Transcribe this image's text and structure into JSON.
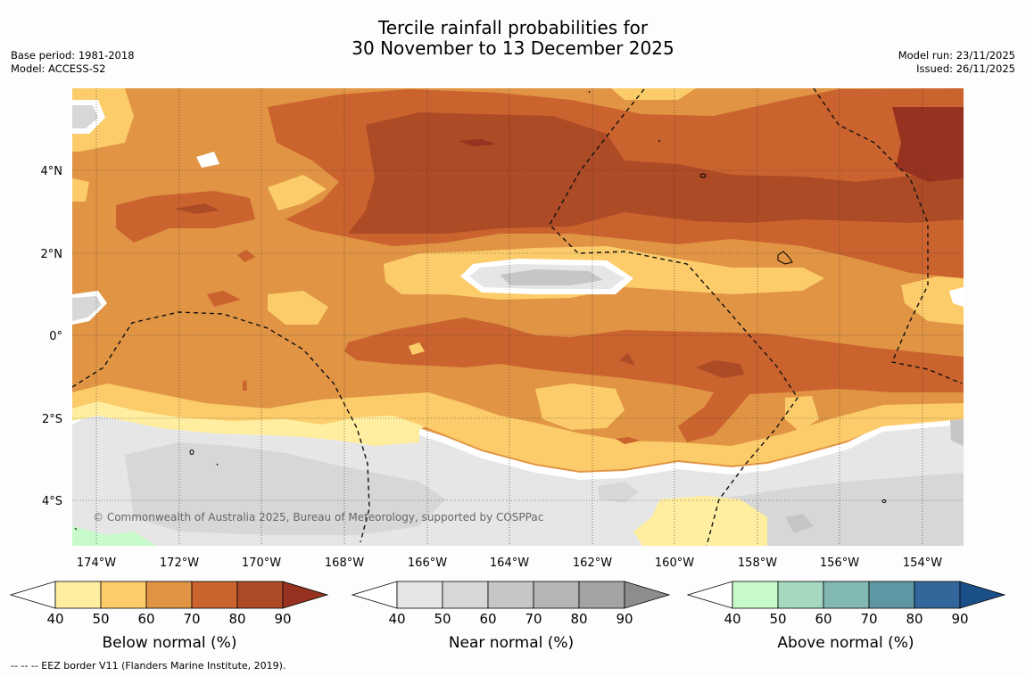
{
  "header": {
    "title_line1": "Tercile rainfall probabilities for",
    "title_line2": "30 November to 13 December 2025",
    "base_period": "Base period: 1981-2018",
    "model": "Model: ACCESS-S2",
    "model_run": "Model run: 23/11/2025",
    "issued": "Issued: 26/11/2025"
  },
  "map": {
    "lat_labels": [
      "4°N",
      "2°N",
      "0°",
      "2°S",
      "4°S"
    ],
    "lon_labels": [
      "174°W",
      "172°W",
      "170°W",
      "168°W",
      "166°W",
      "164°W",
      "162°W",
      "160°W",
      "158°W",
      "156°W",
      "154°W"
    ],
    "copyright": "© Commonwealth of Australia 2025, Bureau of Meteorology, supported by COSPPac",
    "colors": {
      "below": [
        "#ffeea0",
        "#fdcc6a",
        "#e09444",
        "#cb632f",
        "#ad4b26",
        "#96321f"
      ],
      "near": [
        "#e6e6e6",
        "#d7d7d7",
        "#c6c6c6",
        "#b5b5b5",
        "#a3a3a3",
        "#8d8d8d"
      ],
      "above": [
        "#c8fbcb",
        "#a4d9bf",
        "#82b8b4",
        "#5f96a4",
        "#33669a",
        "#1b4f88"
      ]
    }
  },
  "colorbars": [
    {
      "title": "Below normal (%)",
      "ticks": [
        "40",
        "50",
        "60",
        "70",
        "80",
        "90"
      ]
    },
    {
      "title": "Near normal (%)",
      "ticks": [
        "40",
        "50",
        "60",
        "70",
        "80",
        "90"
      ]
    },
    {
      "title": "Above normal (%)",
      "ticks": [
        "40",
        "50",
        "60",
        "70",
        "80",
        "90"
      ]
    }
  ],
  "footnote": "--  --  -- EEZ border V11 (Flanders Marine Institute, 2019)."
}
